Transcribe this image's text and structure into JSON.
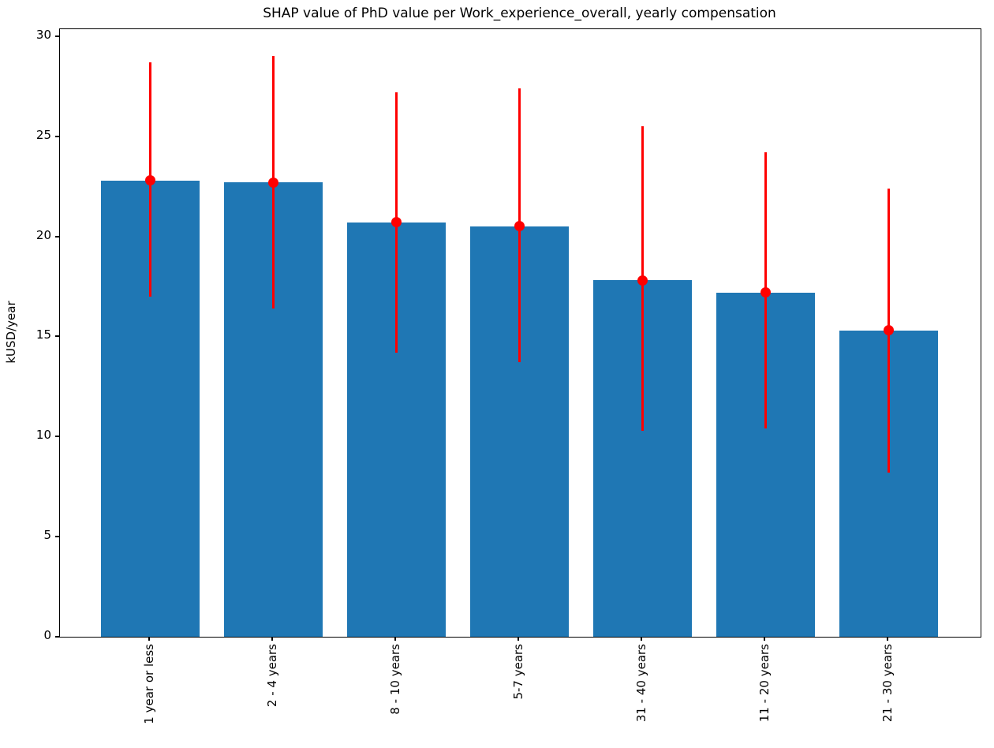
{
  "chart_data": {
    "type": "bar",
    "title": "SHAP value of PhD value per Work_experience_overall, yearly compensation",
    "xlabel": "",
    "ylabel": "kUSD/year",
    "categories": [
      "1 year or less",
      "2 - 4 years",
      "8 - 10 years",
      "5-7 years",
      "31 - 40 years",
      "11 - 20 years",
      "21 - 30 years"
    ],
    "values": [
      22.8,
      22.7,
      20.7,
      20.5,
      17.8,
      17.2,
      15.3
    ],
    "error_high": [
      28.7,
      29.0,
      27.2,
      27.4,
      25.5,
      24.2,
      22.4
    ],
    "error_low": [
      17.0,
      16.4,
      14.2,
      13.7,
      10.3,
      10.4,
      8.2
    ],
    "yticks": [
      0,
      5,
      10,
      15,
      20,
      25,
      30
    ],
    "ylim": [
      0,
      30.35
    ],
    "grid": false,
    "legend": "none",
    "bar_color": "#1f77b4",
    "error_color": "#ff0000"
  }
}
